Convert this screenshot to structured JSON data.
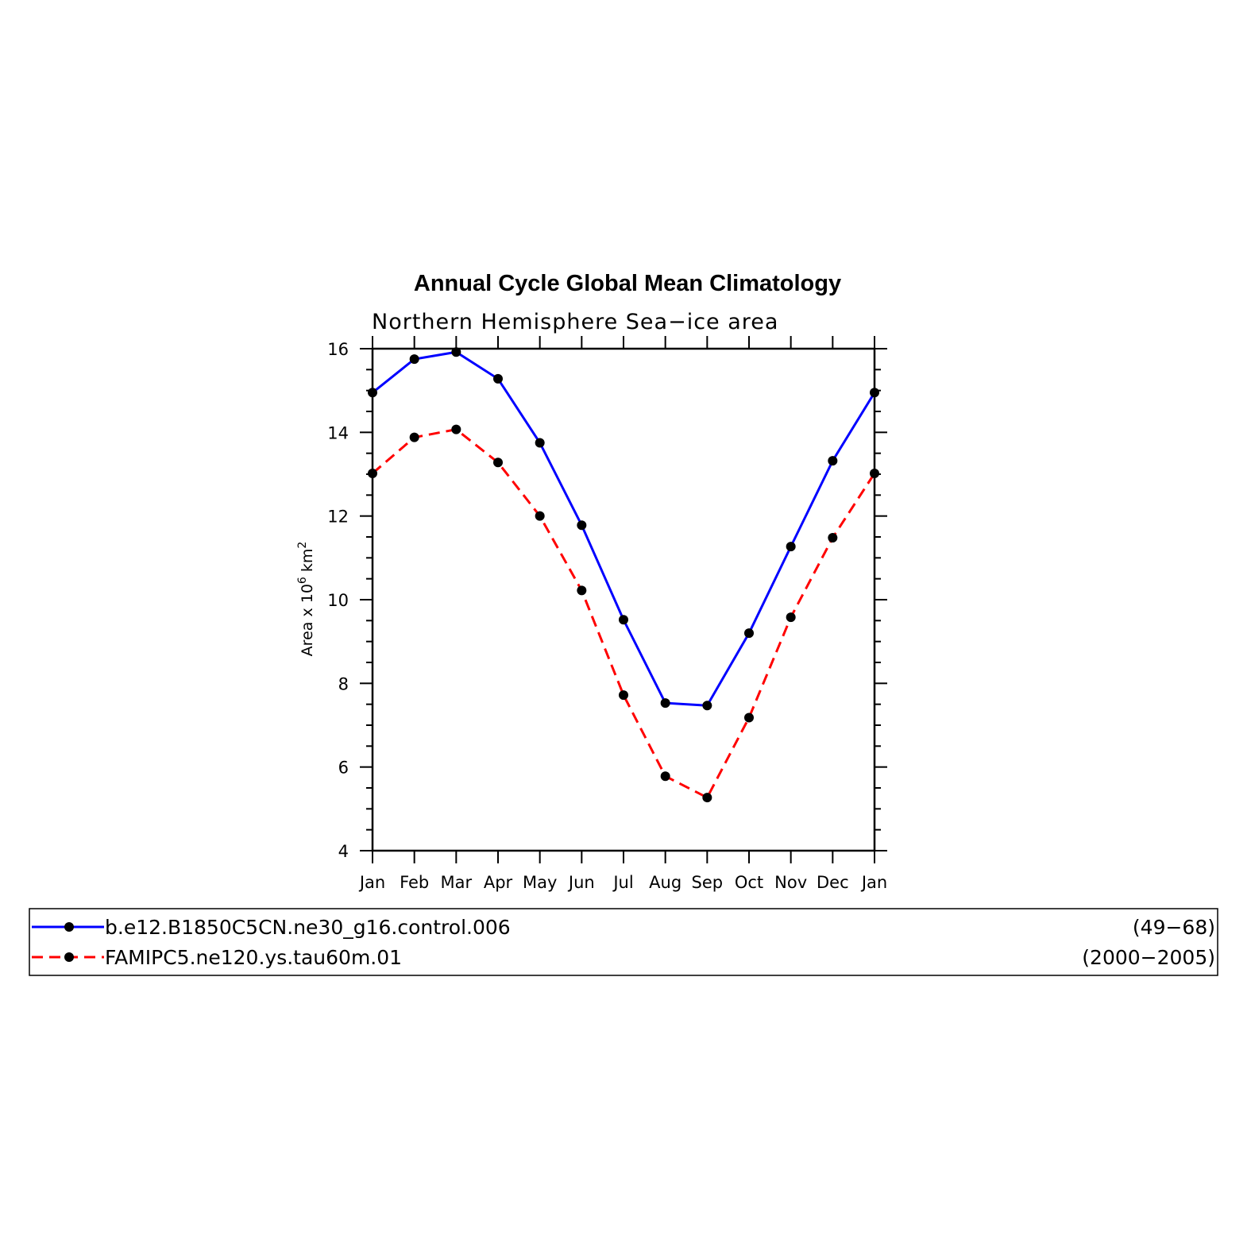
{
  "chart_data": {
    "type": "line",
    "title": "Annual Cycle Global Mean Climatology",
    "subtitle": "Northern Hemisphere Sea−ice area",
    "xlabel": "",
    "ylabel": "Area x 10^6 km^2",
    "ylabel_parts": {
      "pre": "Area x 10",
      "exp1": "6",
      "mid": " km",
      "exp2": "2"
    },
    "categories": [
      "Jan",
      "Feb",
      "Mar",
      "Apr",
      "May",
      "Jun",
      "Jul",
      "Aug",
      "Sep",
      "Oct",
      "Nov",
      "Dec",
      "Jan"
    ],
    "ylim": [
      4,
      16
    ],
    "yticks": [
      4,
      6,
      8,
      10,
      12,
      14,
      16
    ],
    "grid": false,
    "legend_position": "bottom",
    "series": [
      {
        "name": "b.e12.B1850C5CN.ne30_g16.control.006",
        "period": "(49−68)",
        "color": "#0000ff",
        "dash": "solid",
        "values": [
          14.95,
          15.75,
          15.92,
          15.28,
          13.75,
          11.78,
          9.52,
          7.53,
          7.47,
          9.2,
          11.27,
          13.32,
          14.95
        ]
      },
      {
        "name": "FAMIPC5.ne120.ys.tau60m.01",
        "period": "(2000−2005)",
        "color": "#ff0000",
        "dash": "dashed",
        "values": [
          13.02,
          13.88,
          14.07,
          13.28,
          12.0,
          10.22,
          7.72,
          5.78,
          5.27,
          7.18,
          9.58,
          11.48,
          13.02
        ]
      }
    ]
  }
}
